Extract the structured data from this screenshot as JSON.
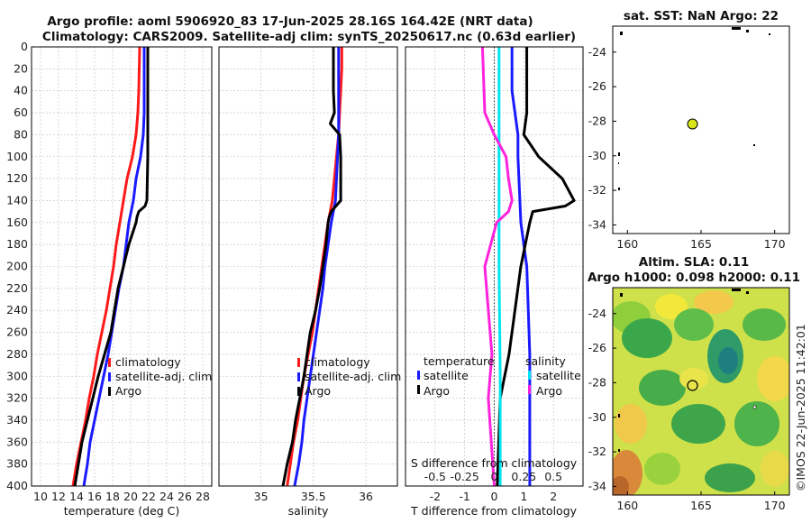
{
  "figure": {
    "title_line1": "Argo profile: aoml 5906920_83 17-Jun-2025 28.16S 164.42E (NRT data)",
    "title_line2": "Climatology: CARS2009. Satellite-adj clim: synTS_20250617.nc (0.63d earlier)",
    "watermark": "©IMOS 22-Jun-2025 11:42:01"
  },
  "colors": {
    "climatology": "#ff1a1a",
    "satellite": "#1a1aff",
    "argo": "#000000",
    "cyan": "#00e5ee",
    "magenta": "#ff22dd"
  },
  "chart_data": [
    {
      "id": "temperature",
      "type": "line",
      "xlabel": "temperature (deg C)",
      "ylabel": "",
      "xlim": [
        9,
        29
      ],
      "ylim": [
        400,
        0
      ],
      "xticks": [
        10,
        12,
        14,
        16,
        18,
        20,
        22,
        24,
        26,
        28
      ],
      "yticks": [
        0,
        20,
        40,
        60,
        80,
        100,
        120,
        140,
        160,
        180,
        200,
        220,
        240,
        260,
        280,
        300,
        320,
        340,
        360,
        380,
        400
      ],
      "legend": [
        "climatology",
        "satellite-adj. clim",
        "Argo"
      ],
      "series": [
        {
          "name": "climatology",
          "depth": [
            0,
            20,
            40,
            60,
            80,
            100,
            120,
            140,
            160,
            180,
            200,
            220,
            240,
            260,
            280,
            300,
            320,
            340,
            360,
            380,
            400
          ],
          "values": [
            21.0,
            20.95,
            20.9,
            20.8,
            20.6,
            20.2,
            19.6,
            19.2,
            18.8,
            18.4,
            18.1,
            17.7,
            17.3,
            16.8,
            16.3,
            15.9,
            15.4,
            15.0,
            14.5,
            14.0,
            13.6
          ]
        },
        {
          "name": "satellite-adj. clim",
          "depth": [
            0,
            20,
            40,
            60,
            80,
            100,
            120,
            140,
            160,
            180,
            200,
            220,
            240,
            260,
            280,
            300,
            320,
            340,
            360,
            380,
            400
          ],
          "values": [
            21.5,
            21.5,
            21.5,
            21.5,
            21.4,
            21.1,
            20.6,
            20.3,
            19.8,
            19.5,
            19.2,
            18.7,
            18.3,
            17.9,
            17.5,
            17.0,
            16.5,
            16.0,
            15.5,
            15.2,
            14.8
          ]
        },
        {
          "name": "Argo",
          "depth": [
            0,
            20,
            40,
            60,
            80,
            100,
            120,
            140,
            145,
            150,
            155,
            160,
            180,
            200,
            220,
            240,
            260,
            280,
            300,
            320,
            340,
            360,
            380,
            400
          ],
          "values": [
            21.9,
            21.9,
            21.9,
            21.9,
            21.9,
            21.9,
            21.85,
            21.8,
            21.6,
            20.9,
            20.7,
            20.6,
            19.8,
            19.2,
            18.6,
            18.2,
            17.8,
            17.1,
            16.4,
            15.8,
            15.2,
            14.6,
            14.2,
            13.8
          ]
        }
      ]
    },
    {
      "id": "salinity",
      "type": "line",
      "xlabel": "salinity",
      "ylabel": "",
      "xlim": [
        34.6,
        36.3
      ],
      "ylim": [
        400,
        0
      ],
      "xticks": [
        35,
        35.5,
        36
      ],
      "legend": [
        "climatology",
        "satellite-adj. clim",
        "Argo"
      ],
      "series": [
        {
          "name": "climatology",
          "depth": [
            0,
            20,
            40,
            60,
            80,
            100,
            120,
            140,
            160,
            180,
            200,
            220,
            240,
            260,
            280,
            300,
            320,
            340,
            360,
            380,
            400
          ],
          "values": [
            35.77,
            35.77,
            35.76,
            35.75,
            35.74,
            35.72,
            35.7,
            35.68,
            35.64,
            35.61,
            35.58,
            35.55,
            35.52,
            35.49,
            35.45,
            35.41,
            35.38,
            35.35,
            35.31,
            35.28,
            35.25
          ]
        },
        {
          "name": "satellite-adj. clim",
          "depth": [
            0,
            20,
            40,
            60,
            80,
            100,
            120,
            140,
            160,
            180,
            200,
            220,
            240,
            260,
            280,
            300,
            320,
            340,
            360,
            380,
            400
          ],
          "values": [
            35.74,
            35.74,
            35.74,
            35.74,
            35.74,
            35.73,
            35.72,
            35.71,
            35.67,
            35.64,
            35.61,
            35.59,
            35.56,
            35.53,
            35.5,
            35.47,
            35.44,
            35.41,
            35.39,
            35.36,
            35.32
          ]
        },
        {
          "name": "Argo",
          "depth": [
            0,
            20,
            40,
            60,
            70,
            80,
            100,
            140,
            150,
            155,
            160,
            180,
            200,
            220,
            240,
            260,
            280,
            300,
            320,
            340,
            360,
            380,
            400
          ],
          "values": [
            35.69,
            35.69,
            35.69,
            35.7,
            35.66,
            35.75,
            35.76,
            35.76,
            35.67,
            35.65,
            35.64,
            35.62,
            35.59,
            35.56,
            35.52,
            35.47,
            35.44,
            35.41,
            35.37,
            35.33,
            35.3,
            35.25,
            35.21
          ]
        }
      ]
    },
    {
      "id": "difference",
      "type": "line",
      "xlabel": "T difference from climatology",
      "xlabel_top": "S difference from climatology",
      "xlim": [
        -3,
        3
      ],
      "ylim": [
        400,
        0
      ],
      "xticks": [
        -2,
        -1,
        0,
        1,
        2
      ],
      "xticks_top": [
        "-0.5",
        "-0.25",
        "0",
        "0.25",
        "0.5"
      ],
      "legend_left_title": "temperature",
      "legend_right_title": "salinity",
      "legend_left": [
        "satellite",
        "Argo"
      ],
      "legend_right": [
        "satellite",
        "Argo"
      ],
      "series": [
        {
          "name": "T satellite",
          "depth": [
            0,
            40,
            80,
            100,
            160,
            200,
            280,
            320,
            400
          ],
          "values": [
            0.6,
            0.6,
            0.8,
            0.8,
            0.9,
            1.1,
            1.2,
            1.2,
            1.2
          ]
        },
        {
          "name": "T Argo",
          "depth": [
            0,
            60,
            80,
            100,
            120,
            140,
            145,
            150,
            160,
            200,
            280,
            320,
            400
          ],
          "values": [
            1.1,
            1.1,
            1.0,
            1.5,
            2.3,
            2.7,
            2.4,
            1.3,
            1.2,
            0.9,
            0.5,
            0.2,
            0.1
          ]
        },
        {
          "name": "S satellite",
          "depth": [
            0,
            100,
            200,
            300,
            400
          ],
          "values": [
            0.04,
            0.04,
            0.04,
            0.05,
            0.05
          ]
        },
        {
          "name": "S Argo",
          "depth": [
            0,
            60,
            80,
            100,
            120,
            140,
            150,
            160,
            200,
            280,
            320,
            400
          ],
          "values": [
            -0.1,
            -0.08,
            0.0,
            0.1,
            0.12,
            0.15,
            0.12,
            0.02,
            -0.08,
            -0.02,
            -0.05,
            0.0
          ]
        }
      ]
    },
    {
      "id": "sst_map",
      "type": "map",
      "title": "sat. SST: NaN Argo: 22",
      "xlim": [
        159,
        171
      ],
      "ylim": [
        -34.5,
        -22.5
      ],
      "xticks": [
        160,
        165,
        170
      ],
      "yticks": [
        -24,
        -26,
        -28,
        -30,
        -32,
        -34
      ],
      "profile_marker": {
        "lon": 164.42,
        "lat": -28.16
      }
    },
    {
      "id": "sla_map",
      "type": "map",
      "title_line1": "Altim. SLA: 0.11",
      "title_line2": "Argo h1000: 0.098 h2000: 0.11",
      "xlim": [
        159,
        171
      ],
      "ylim": [
        -34.5,
        -22.5
      ],
      "xticks": [
        160,
        165,
        170
      ],
      "yticks": [
        -24,
        -26,
        -28,
        -30,
        -32,
        -34
      ],
      "profile_marker": {
        "lon": 164.42,
        "lat": -28.16
      }
    }
  ]
}
